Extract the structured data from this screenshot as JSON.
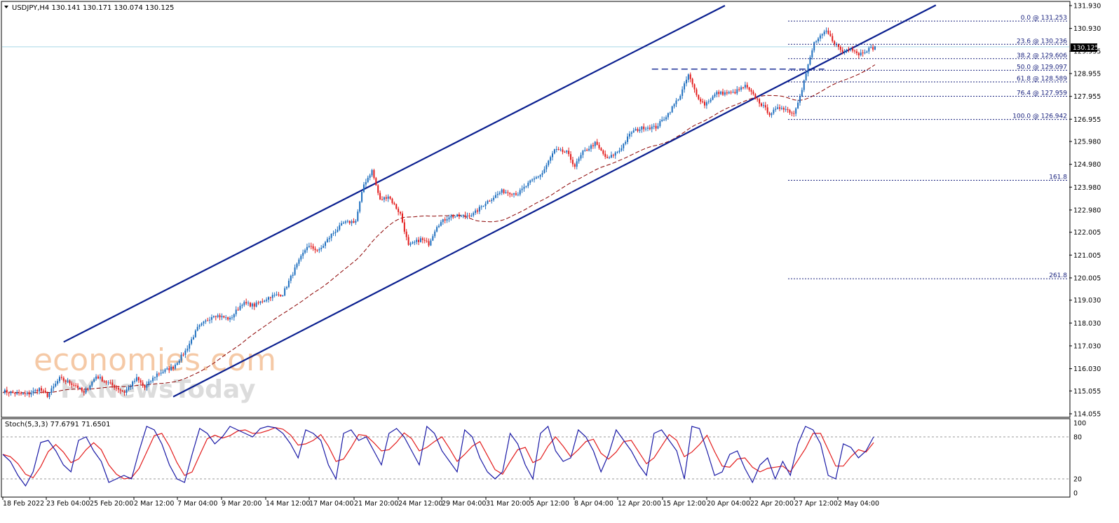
{
  "header": {
    "title": "USDJPY,H4  130.141 130.171 130.074 130.125"
  },
  "price_badge": "130.125",
  "watermark": {
    "brand": "economies.com",
    "brand_alt": "FXNewsToday"
  },
  "stoch": {
    "label": "Stoch(5,3,3) 77.6791 71.6501",
    "levels": [
      "100",
      "80",
      "20",
      "0"
    ]
  },
  "colors": {
    "bull": "#1e6fbf",
    "bear": "#e31c1c",
    "channel": "#0a1f8f",
    "ma": "#8b0000",
    "stoch_main": "#1a1aa6",
    "stoch_signal": "#e31c1c",
    "fib": "#1a237e",
    "grid": "#000000",
    "price_line": "#a6d8e6"
  },
  "chart_data": {
    "type": "candlestick",
    "symbol": "USDJPY",
    "timeframe": "H4",
    "y_ticks": [
      "131.930",
      "130.930",
      "129.935",
      "128.955",
      "127.955",
      "126.955",
      "125.980",
      "124.980",
      "123.980",
      "122.980",
      "122.005",
      "121.005",
      "120.005",
      "119.030",
      "118.030",
      "117.030",
      "116.030",
      "115.055",
      "114.055"
    ],
    "x_ticks": [
      "18 Feb 2022",
      "23 Feb 04:00",
      "25 Feb 20:00",
      "2 Mar 12:00",
      "7 Mar 04:00",
      "9 Mar 20:00",
      "14 Mar 12:00",
      "17 Mar 04:00",
      "21 Mar 20:00",
      "24 Mar 12:00",
      "29 Mar 04:00",
      "31 Mar 20:00",
      "5 Apr 12:00",
      "8 Apr 04:00",
      "12 Apr 20:00",
      "15 Apr 12:00",
      "20 Apr 04:00",
      "22 Apr 20:00",
      "27 Apr 12:00",
      "2 May 04:00"
    ],
    "ylim": [
      114.055,
      131.93
    ],
    "last_price": 130.125,
    "fib_levels": [
      {
        "label": "0.0 @ 131.253",
        "price": 131.253
      },
      {
        "label": "23.6 @ 130.236",
        "price": 130.236
      },
      {
        "label": "38.2 @ 129.606",
        "price": 129.606
      },
      {
        "label": "50.0 @ 129.097",
        "price": 129.097
      },
      {
        "label": "61.8 @ 128.589",
        "price": 128.589
      },
      {
        "label": "76.4 @ 127.959",
        "price": 127.959
      },
      {
        "label": "100.0 @ 126.942",
        "price": 126.942
      },
      {
        "label": "161.8",
        "price": 124.28
      },
      {
        "label": "261.8",
        "price": 119.97
      }
    ],
    "price_path": [
      [
        0,
        115.05
      ],
      [
        6,
        114.95
      ],
      [
        12,
        114.9
      ],
      [
        18,
        115.15
      ],
      [
        22,
        114.85
      ],
      [
        28,
        115.6
      ],
      [
        36,
        115.3
      ],
      [
        40,
        114.95
      ],
      [
        46,
        115.7
      ],
      [
        52,
        115.4
      ],
      [
        60,
        115.0
      ],
      [
        66,
        115.6
      ],
      [
        70,
        115.2
      ],
      [
        76,
        115.8
      ],
      [
        84,
        116.1
      ],
      [
        90,
        116.8
      ],
      [
        96,
        117.8
      ],
      [
        104,
        118.4
      ],
      [
        112,
        118.2
      ],
      [
        118,
        118.9
      ],
      [
        124,
        118.8
      ],
      [
        132,
        119.2
      ],
      [
        138,
        119.3
      ],
      [
        144,
        120.4
      ],
      [
        150,
        121.4
      ],
      [
        156,
        121.2
      ],
      [
        162,
        121.9
      ],
      [
        168,
        122.4
      ],
      [
        174,
        122.5
      ],
      [
        178,
        124.1
      ],
      [
        182,
        124.7
      ],
      [
        186,
        123.4
      ],
      [
        190,
        123.6
      ],
      [
        196,
        122.8
      ],
      [
        200,
        121.4
      ],
      [
        206,
        121.7
      ],
      [
        210,
        121.5
      ],
      [
        214,
        122.3
      ],
      [
        220,
        122.7
      ],
      [
        226,
        122.7
      ],
      [
        232,
        122.8
      ],
      [
        238,
        123.3
      ],
      [
        246,
        123.8
      ],
      [
        254,
        123.7
      ],
      [
        260,
        124.2
      ],
      [
        266,
        124.6
      ],
      [
        272,
        125.6
      ],
      [
        278,
        125.5
      ],
      [
        282,
        124.9
      ],
      [
        286,
        125.5
      ],
      [
        292,
        125.9
      ],
      [
        298,
        125.2
      ],
      [
        304,
        125.6
      ],
      [
        310,
        126.4
      ],
      [
        316,
        126.6
      ],
      [
        322,
        126.6
      ],
      [
        328,
        127.2
      ],
      [
        334,
        128.0
      ],
      [
        338,
        128.9
      ],
      [
        342,
        128.0
      ],
      [
        346,
        127.6
      ],
      [
        352,
        128.1
      ],
      [
        360,
        128.1
      ],
      [
        366,
        128.4
      ],
      [
        372,
        127.8
      ],
      [
        378,
        127.2
      ],
      [
        384,
        127.5
      ],
      [
        390,
        127.2
      ],
      [
        394,
        128.3
      ],
      [
        400,
        130.3
      ],
      [
        406,
        130.8
      ],
      [
        410,
        130.3
      ],
      [
        414,
        129.9
      ],
      [
        418,
        130.1
      ],
      [
        422,
        129.8
      ],
      [
        426,
        130.0
      ],
      [
        430,
        130.1
      ]
    ],
    "channel_lines": [
      {
        "name": "upper",
        "from": [
          30,
          117.2
        ],
        "to": [
          356,
          131.93
        ]
      },
      {
        "name": "lower",
        "from": [
          84,
          114.8
        ],
        "to": [
          460,
          131.95
        ]
      }
    ],
    "resistance_level": 129.15,
    "stochastic": {
      "main_last": 77.6791,
      "signal_last": 71.6501,
      "overbought": 80,
      "oversold": 20,
      "main": [
        55,
        45,
        25,
        10,
        30,
        72,
        75,
        60,
        40,
        30,
        75,
        80,
        60,
        45,
        15,
        20,
        25,
        20,
        60,
        95,
        90,
        70,
        40,
        20,
        15,
        55,
        92,
        85,
        70,
        80,
        95,
        90,
        85,
        80,
        92,
        95,
        93,
        85,
        70,
        50,
        90,
        85,
        75,
        40,
        20,
        85,
        90,
        75,
        80,
        60,
        40,
        85,
        92,
        80,
        60,
        40,
        95,
        85,
        60,
        45,
        30,
        90,
        80,
        50,
        30,
        20,
        30,
        85,
        70,
        40,
        20,
        85,
        95,
        60,
        45,
        50,
        90,
        80,
        60,
        30,
        55,
        90,
        75,
        60,
        40,
        25,
        85,
        90,
        75,
        60,
        20,
        95,
        92,
        60,
        25,
        30,
        55,
        60,
        35,
        15,
        40,
        50,
        20,
        45,
        25,
        70,
        95,
        90,
        70,
        25,
        20,
        70,
        65,
        50,
        60,
        80
      ]
    }
  }
}
